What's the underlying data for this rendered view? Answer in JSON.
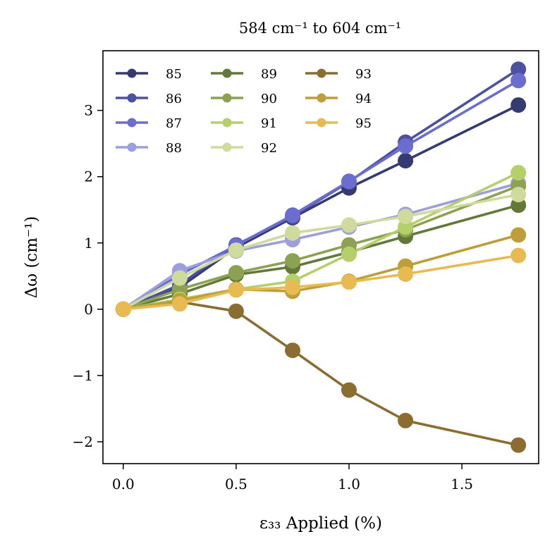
{
  "chart_data": {
    "type": "line",
    "title": "584 cm⁻¹ to 604 cm⁻¹",
    "xlabel": "ε₃₃ Applied (%)",
    "ylabel": "Δω (cm⁻¹)",
    "xlim": [
      -0.09,
      1.84
    ],
    "ylim": [
      -2.33,
      3.9
    ],
    "xticks": [
      0.0,
      0.5,
      1.0,
      1.5
    ],
    "xtick_labels": [
      "0.0",
      "0.5",
      "1.0",
      "1.5"
    ],
    "yticks": [
      -2,
      -1,
      0,
      1,
      2,
      3
    ],
    "ytick_labels": [
      "−2",
      "−1",
      "0",
      "1",
      "2",
      "3"
    ],
    "legend_position": "top-left",
    "legend_columns": 3,
    "x": [
      0.0,
      0.25,
      0.5,
      0.75,
      1.0,
      1.25,
      1.75
    ],
    "series": [
      {
        "name": "85",
        "color": "#353a73",
        "values": [
          0.0,
          0.33,
          0.93,
          1.38,
          1.83,
          2.24,
          3.08
        ]
      },
      {
        "name": "86",
        "color": "#4c51a0",
        "values": [
          0.0,
          0.37,
          0.97,
          1.4,
          1.92,
          2.52,
          3.62
        ]
      },
      {
        "name": "87",
        "color": "#6b6ecf",
        "values": [
          0.0,
          0.52,
          0.96,
          1.42,
          1.93,
          2.46,
          3.45
        ]
      },
      {
        "name": "88",
        "color": "#9c9ede",
        "values": [
          0.0,
          0.58,
          0.88,
          1.05,
          1.24,
          1.43,
          1.9
        ]
      },
      {
        "name": "89",
        "color": "#637939",
        "values": [
          0.0,
          0.23,
          0.52,
          0.64,
          0.86,
          1.1,
          1.57
        ]
      },
      {
        "name": "90",
        "color": "#8ca252",
        "values": [
          0.0,
          0.3,
          0.55,
          0.73,
          0.97,
          1.2,
          1.86
        ]
      },
      {
        "name": "91",
        "color": "#b5cf6b",
        "values": [
          0.0,
          0.15,
          0.3,
          0.42,
          0.83,
          1.24,
          2.06
        ]
      },
      {
        "name": "92",
        "color": "#cedb9c",
        "values": [
          0.0,
          0.47,
          0.89,
          1.15,
          1.27,
          1.4,
          1.73
        ]
      },
      {
        "name": "93",
        "color": "#8c6d31",
        "values": [
          0.0,
          0.11,
          -0.03,
          -0.62,
          -1.22,
          -1.68,
          -2.05
        ]
      },
      {
        "name": "94",
        "color": "#bd9e39",
        "values": [
          0.0,
          0.13,
          0.3,
          0.27,
          0.42,
          0.65,
          1.12
        ]
      },
      {
        "name": "95",
        "color": "#e7ba52",
        "values": [
          0.0,
          0.08,
          0.29,
          0.33,
          0.41,
          0.53,
          0.81
        ]
      }
    ]
  }
}
